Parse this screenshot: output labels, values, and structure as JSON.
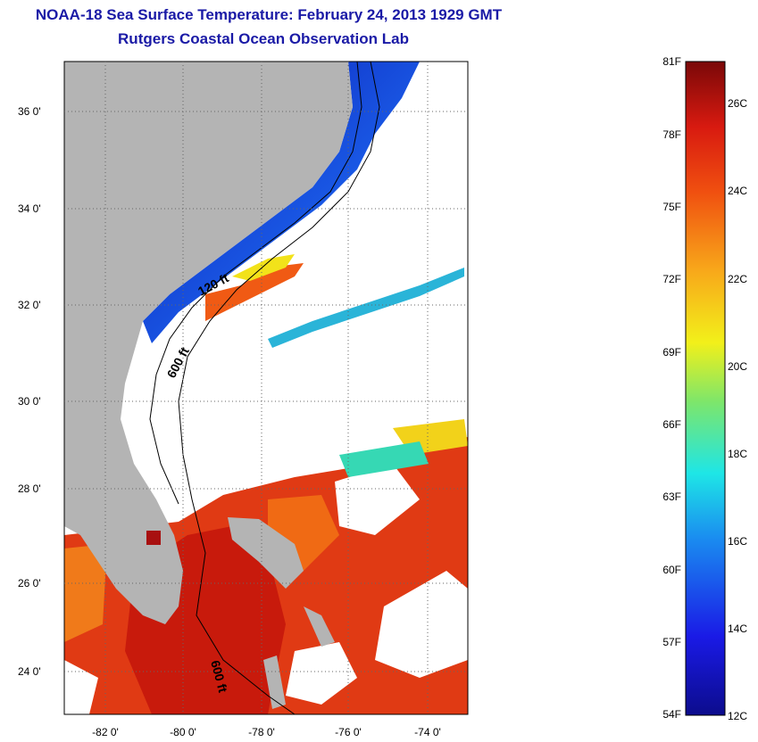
{
  "header": {
    "title": "NOAA-18 Sea Surface Temperature:  February 24, 2013 1929 GMT",
    "subtitle": "Rutgers Coastal Ocean Observation Lab"
  },
  "map": {
    "lat_labels": [
      "36 0'",
      "34 0'",
      "32 0'",
      "30 0'",
      "28 0'",
      "26 0'",
      "24 0'"
    ],
    "lon_labels": [
      "-82 0'",
      "-80 0'",
      "-78 0'",
      "-76 0'",
      "-74 0'"
    ],
    "contour_labels": [
      "120 ft",
      "600 ft",
      "600 ft"
    ],
    "colors": {
      "land": "#b4b4b4",
      "cold": "#1010c8",
      "warm": "#d81a10",
      "mid": "#f2e21a"
    }
  },
  "colorbar": {
    "fahrenheit": [
      "81F",
      "78F",
      "75F",
      "72F",
      "69F",
      "66F",
      "63F",
      "60F",
      "57F",
      "54F"
    ],
    "celsius": [
      "26C",
      "24C",
      "22C",
      "20C",
      "18C",
      "16C",
      "14C",
      "12C"
    ]
  }
}
